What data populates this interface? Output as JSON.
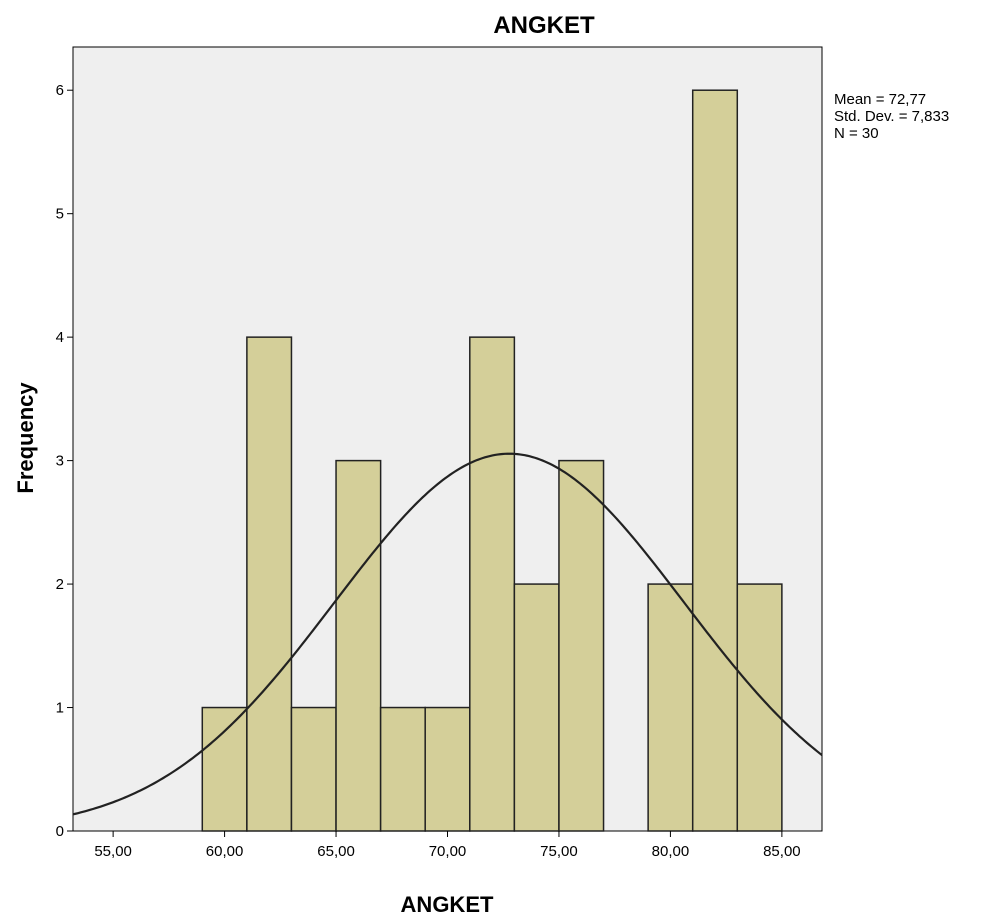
{
  "chart_data": {
    "type": "bar",
    "title": "ANGKET",
    "xlabel": "ANGKET",
    "ylabel": "Frequency",
    "bin_width": 2,
    "bins": [
      {
        "start": 59,
        "end": 61,
        "value": 1
      },
      {
        "start": 61,
        "end": 63,
        "value": 4
      },
      {
        "start": 63,
        "end": 65,
        "value": 1
      },
      {
        "start": 65,
        "end": 67,
        "value": 3
      },
      {
        "start": 67,
        "end": 69,
        "value": 1
      },
      {
        "start": 69,
        "end": 71,
        "value": 1
      },
      {
        "start": 71,
        "end": 73,
        "value": 4
      },
      {
        "start": 73,
        "end": 75,
        "value": 2
      },
      {
        "start": 75,
        "end": 77,
        "value": 3
      },
      {
        "start": 79,
        "end": 81,
        "value": 2
      },
      {
        "start": 81,
        "end": 83,
        "value": 6
      },
      {
        "start": 83,
        "end": 85,
        "value": 2
      }
    ],
    "xlim": [
      53.2,
      86.8
    ],
    "ylim": [
      0,
      6.35
    ],
    "x_ticks": [
      55,
      60,
      65,
      70,
      75,
      80,
      85
    ],
    "x_tick_labels": [
      "55,00",
      "60,00",
      "65,00",
      "70,00",
      "75,00",
      "80,00",
      "85,00"
    ],
    "y_ticks": [
      0,
      1,
      2,
      3,
      4,
      5,
      6
    ],
    "y_tick_labels": [
      "0",
      "1",
      "2",
      "3",
      "4",
      "5",
      "6"
    ],
    "normal_curve": {
      "mean": 72.77,
      "std": 7.833,
      "n": 30
    },
    "stats": [
      "Mean = 72,77",
      "Std. Dev. = 7,833",
      "N = 30"
    ],
    "grid": false,
    "legend": "none",
    "colors": {
      "plot_background": "#efefef",
      "bar_fill": "#d4cf99",
      "bar_stroke": "#222222",
      "curve": "#222222",
      "axis": "#000000"
    }
  }
}
